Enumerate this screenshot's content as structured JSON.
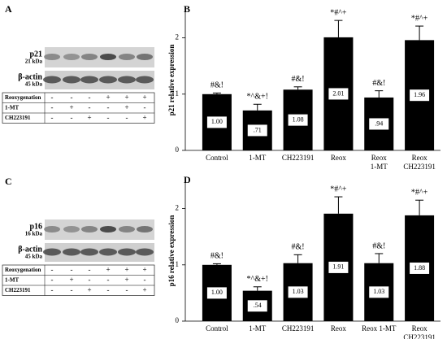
{
  "chart_data": [
    {
      "type": "bar",
      "letter": "B",
      "ylabel": "p21 relative expression",
      "categories": [
        [
          "Control"
        ],
        [
          "1-MT"
        ],
        [
          "CH223191"
        ],
        [
          "Reox"
        ],
        [
          "Reox",
          "1-MT"
        ],
        [
          "Reox",
          "CH223191"
        ]
      ],
      "values": [
        1.0,
        0.71,
        1.08,
        2.01,
        0.94,
        1.96
      ],
      "value_labels": [
        "1.00",
        ".71",
        "1.08",
        "2.01",
        ".94",
        "1.96"
      ],
      "errors": [
        0.02,
        0.11,
        0.05,
        0.3,
        0.12,
        0.25
      ],
      "annotations": [
        "#&!",
        "*^&+!",
        "#&!",
        "*#^+",
        "#&!",
        "*#^+"
      ],
      "color": "#000000",
      "ylim": [
        0,
        2.5
      ],
      "yticks": [
        0,
        1,
        2
      ]
    },
    {
      "type": "bar",
      "letter": "D",
      "ylabel": "p16 relative expression",
      "categories": [
        [
          "Control"
        ],
        [
          "1-MT"
        ],
        [
          "CH223191"
        ],
        [
          "Reox"
        ],
        [
          "Reox 1-MT"
        ],
        [
          "Reox",
          "CH223191"
        ]
      ],
      "values": [
        1.0,
        0.54,
        1.03,
        1.91,
        1.03,
        1.88
      ],
      "value_labels": [
        "1.00",
        ".54",
        "1.03",
        "1.91",
        "1.03",
        "1.88"
      ],
      "errors": [
        0.02,
        0.07,
        0.15,
        0.3,
        0.17,
        0.27
      ],
      "annotations": [
        "#&!",
        "*^&+!",
        "#&!",
        "*#^+",
        "#&!",
        "*#^+"
      ],
      "color": "#000000",
      "ylim": [
        0,
        2.5
      ],
      "yticks": [
        0,
        1,
        2
      ]
    }
  ],
  "blots": [
    {
      "letter": "A",
      "protein": "p21",
      "protein_size": "21 kDa",
      "control": "β-actin",
      "control_size": "45 kDa",
      "rows": [
        {
          "label": "Reoxygenation",
          "signs": [
            "-",
            "-",
            "-",
            "+",
            "+",
            "+"
          ]
        },
        {
          "label": "1-MT",
          "signs": [
            "-",
            "+",
            "-",
            "-",
            "+",
            "-"
          ]
        },
        {
          "label": "CH223191",
          "signs": [
            "-",
            "-",
            "+",
            "-",
            "-",
            "+"
          ]
        }
      ]
    },
    {
      "letter": "C",
      "protein": "p16",
      "protein_size": "16 kDa",
      "control": "β-actin",
      "control_size": "45 kDa",
      "rows": [
        {
          "label": "Reoxygenation",
          "signs": [
            "-",
            "-",
            "-",
            "+",
            "+",
            "+"
          ]
        },
        {
          "label": "1-MT",
          "signs": [
            "-",
            "+",
            "-",
            "-",
            "+",
            "-"
          ]
        },
        {
          "label": "CH223191",
          "signs": [
            "-",
            "-",
            "+",
            "-",
            "-",
            "+"
          ]
        }
      ]
    }
  ]
}
